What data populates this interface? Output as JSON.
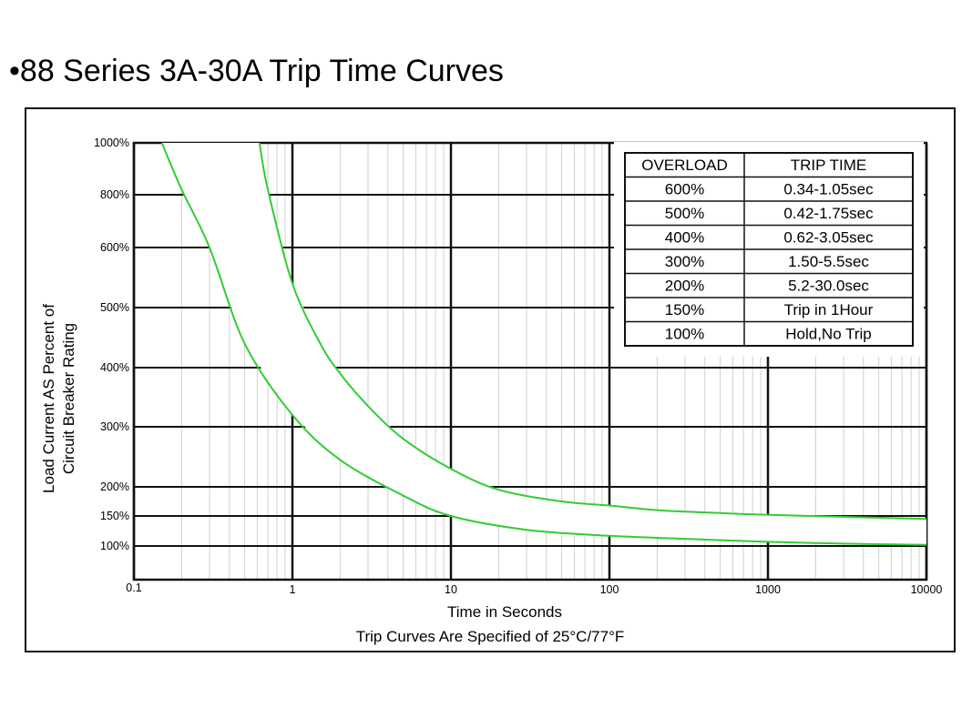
{
  "slide": {
    "title": "•88 Series 3A-30A Trip Time Curves"
  },
  "chart_data": {
    "type": "line",
    "title": "",
    "xlabel": "Time in Seconds",
    "subtitle": "Trip Curves Are Specified of 25°C/77°F",
    "ylabel_line1": "Load Current AS Percent of",
    "ylabel_line2": "Circuit Breaker Rating",
    "x_scale": "log",
    "xlim": [
      0.1,
      10000
    ],
    "x_ticks": [
      {
        "value": 0.1,
        "label": "0.1"
      },
      {
        "value": 1,
        "label": "1"
      },
      {
        "value": 10,
        "label": "10"
      },
      {
        "value": 100,
        "label": "100"
      },
      {
        "value": 1000,
        "label": "1000"
      },
      {
        "value": 10000,
        "label": "10000"
      }
    ],
    "y_ticks": [
      {
        "value": 1000,
        "label": "1000%"
      },
      {
        "value": 800,
        "label": "800%"
      },
      {
        "value": 600,
        "label": "600%"
      },
      {
        "value": 500,
        "label": "500%"
      },
      {
        "value": 400,
        "label": "400%"
      },
      {
        "value": 300,
        "label": "300%"
      },
      {
        "value": 200,
        "label": "200%"
      },
      {
        "value": 150,
        "label": "150%"
      },
      {
        "value": 100,
        "label": "100%"
      }
    ],
    "grid": true,
    "line_color": "#33cc33",
    "series": [
      {
        "x": [
          0.15,
          0.2,
          0.3,
          0.5,
          1,
          2,
          5,
          10,
          30,
          100,
          300,
          1000,
          3000,
          10000
        ],
        "y": [
          1000,
          820,
          600,
          440,
          320,
          245,
          185,
          150,
          127,
          117,
          112,
          107,
          104,
          102
        ]
      },
      {
        "x": [
          0.62,
          0.7,
          1,
          1.5,
          2,
          3,
          5,
          10,
          20,
          50,
          100,
          200,
          500,
          1000,
          10000
        ],
        "y": [
          1000,
          820,
          540,
          440,
          390,
          335,
          280,
          230,
          195,
          175,
          168,
          160,
          155,
          152,
          145
        ]
      }
    ],
    "table": {
      "headers": [
        "OVERLOAD",
        "TRIP TIME"
      ],
      "rows": [
        [
          "600%",
          "0.34-1.05sec"
        ],
        [
          "500%",
          "0.42-1.75sec"
        ],
        [
          "400%",
          "0.62-3.05sec"
        ],
        [
          "300%",
          "1.50-5.5sec"
        ],
        [
          "200%",
          "5.2-30.0sec"
        ],
        [
          "150%",
          "Trip in 1Hour"
        ],
        [
          "100%",
          "Hold,No Trip"
        ]
      ]
    }
  }
}
